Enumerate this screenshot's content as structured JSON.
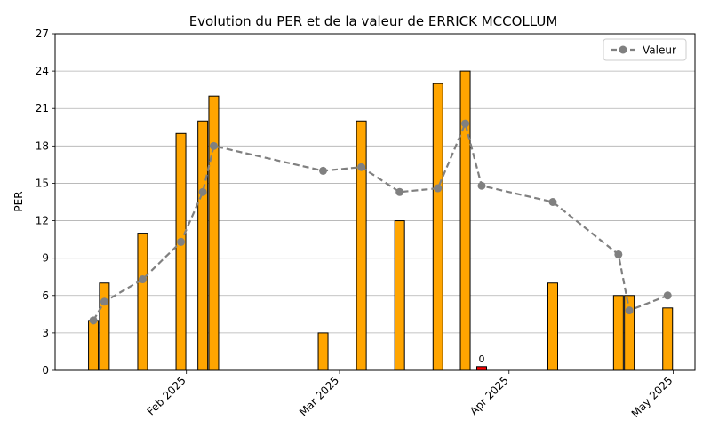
{
  "chart_data": {
    "type": "bar",
    "title": "Evolution du PER et de la valeur de ERRICK MCCOLLUM",
    "xlabel": "",
    "ylabel": "PER",
    "ylim": [
      0,
      27
    ],
    "yticks": [
      0,
      3,
      6,
      9,
      12,
      15,
      18,
      21,
      24,
      27
    ],
    "grid": "y",
    "legend_position": "top-right",
    "x_ticks": [
      {
        "date": "2025-02-01",
        "label": "Feb 2025"
      },
      {
        "date": "2025-03-01",
        "label": "Mar 2025"
      },
      {
        "date": "2025-04-01",
        "label": "Apr 2025"
      },
      {
        "date": "2025-05-01",
        "label": "May 2025"
      }
    ],
    "xlim": [
      "2025-01-08",
      "2025-05-05"
    ],
    "bars": [
      {
        "date": "2025-01-15",
        "value": 4,
        "color": "#ffa500"
      },
      {
        "date": "2025-01-17",
        "value": 7,
        "color": "#ffa500"
      },
      {
        "date": "2025-01-24",
        "value": 11,
        "color": "#ffa500"
      },
      {
        "date": "2025-01-31",
        "value": 19,
        "color": "#ffa500"
      },
      {
        "date": "2025-02-04",
        "value": 20,
        "color": "#ffa500"
      },
      {
        "date": "2025-02-06",
        "value": 22,
        "color": "#ffa500"
      },
      {
        "date": "2025-02-26",
        "value": 3,
        "color": "#ffa500"
      },
      {
        "date": "2025-03-05",
        "value": 20,
        "color": "#ffa500"
      },
      {
        "date": "2025-03-12",
        "value": 12,
        "color": "#ffa500"
      },
      {
        "date": "2025-03-19",
        "value": 23,
        "color": "#ffa500"
      },
      {
        "date": "2025-03-24",
        "value": 24,
        "color": "#ffa500"
      },
      {
        "date": "2025-03-27",
        "value": 0.3,
        "color": "#ff0000",
        "label": "0"
      },
      {
        "date": "2025-04-09",
        "value": 7,
        "color": "#ffa500"
      },
      {
        "date": "2025-04-21",
        "value": 6,
        "color": "#ffa500"
      },
      {
        "date": "2025-04-23",
        "value": 6,
        "color": "#ffa500"
      },
      {
        "date": "2025-04-30",
        "value": 5,
        "color": "#ffa500"
      }
    ],
    "series": [
      {
        "name": "Valeur",
        "color": "#808080",
        "points": [
          {
            "date": "2025-01-15",
            "value": 4.0
          },
          {
            "date": "2025-01-17",
            "value": 5.5
          },
          {
            "date": "2025-01-24",
            "value": 7.3
          },
          {
            "date": "2025-01-31",
            "value": 10.3
          },
          {
            "date": "2025-02-04",
            "value": 14.3
          },
          {
            "date": "2025-02-06",
            "value": 18.0
          },
          {
            "date": "2025-02-26",
            "value": 16.0
          },
          {
            "date": "2025-03-05",
            "value": 16.3
          },
          {
            "date": "2025-03-12",
            "value": 14.3
          },
          {
            "date": "2025-03-19",
            "value": 14.6
          },
          {
            "date": "2025-03-24",
            "value": 19.8
          },
          {
            "date": "2025-03-27",
            "value": 14.8
          },
          {
            "date": "2025-04-09",
            "value": 13.5
          },
          {
            "date": "2025-04-21",
            "value": 9.3
          },
          {
            "date": "2025-04-23",
            "value": 4.8
          },
          {
            "date": "2025-04-30",
            "value": 6.0
          }
        ]
      }
    ]
  }
}
